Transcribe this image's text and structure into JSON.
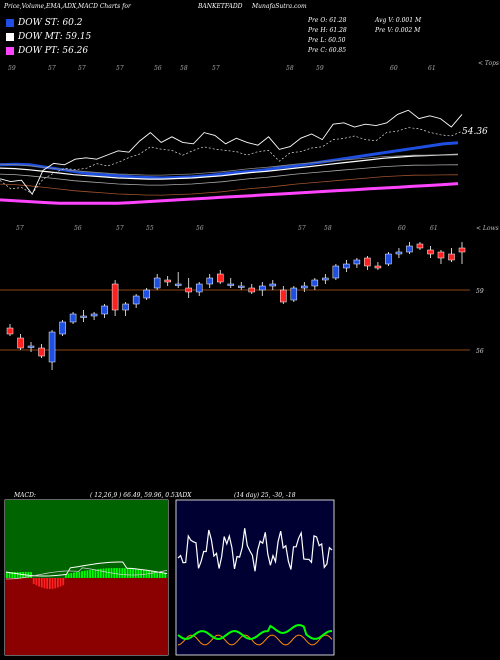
{
  "header": {
    "left_title": "Price,Volume,EMA,ADX,MACD Charts for",
    "symbol": "BANKETFADD",
    "site": "MunafaSutra.com"
  },
  "legend": [
    {
      "label": "DOW ST: 60.2",
      "color": "#1f4fe0"
    },
    {
      "label": "DOW MT: 59.15",
      "color": "#ffffff"
    },
    {
      "label": "DOW PT: 56.26",
      "color": "#ff44ff"
    }
  ],
  "quote": {
    "prev_open": "Pre O: 61.28",
    "prev_high": "Pre H: 61.28",
    "prev_low": "Pre L: 60.50",
    "prev_close": "Pre C: 60.85",
    "avg_volume": "Avg V: 0.001 M",
    "prev_volume": "Pre V: 0.002 M"
  },
  "upper_chart": {
    "tops_label": "< Tops",
    "lows_label": "< Lows",
    "price_label": "54.36",
    "top_tick_labels": [
      "59",
      "57",
      "57",
      "57",
      "56",
      "58",
      "57",
      "58",
      "59",
      "60",
      "61"
    ],
    "low_tick_labels": [
      "57",
      "56",
      "57",
      "55",
      "56",
      "57",
      "58",
      "60",
      "61"
    ]
  },
  "chart_data": {
    "type": "candlestick",
    "price_levels": [
      {
        "label": "59",
        "value": 59
      },
      {
        "label": "56",
        "value": 56
      }
    ],
    "candles": [
      {
        "o": 57.1,
        "h": 57.3,
        "l": 56.7,
        "c": 56.8
      },
      {
        "o": 56.6,
        "h": 56.8,
        "l": 56.0,
        "c": 56.1
      },
      {
        "o": 56.2,
        "h": 56.4,
        "l": 55.9,
        "c": 56.2
      },
      {
        "o": 56.1,
        "h": 56.3,
        "l": 55.6,
        "c": 55.7
      },
      {
        "o": 55.4,
        "h": 57.0,
        "l": 55.0,
        "c": 56.9
      },
      {
        "o": 56.8,
        "h": 57.5,
        "l": 56.7,
        "c": 57.4
      },
      {
        "o": 57.4,
        "h": 57.9,
        "l": 57.3,
        "c": 57.8
      },
      {
        "o": 57.7,
        "h": 58.0,
        "l": 57.4,
        "c": 57.7
      },
      {
        "o": 57.7,
        "h": 57.9,
        "l": 57.5,
        "c": 57.8
      },
      {
        "o": 57.8,
        "h": 58.3,
        "l": 57.6,
        "c": 58.2
      },
      {
        "o": 59.3,
        "h": 59.5,
        "l": 57.7,
        "c": 58.0
      },
      {
        "o": 58.0,
        "h": 58.4,
        "l": 57.7,
        "c": 58.3
      },
      {
        "o": 58.3,
        "h": 58.8,
        "l": 58.1,
        "c": 58.7
      },
      {
        "o": 58.6,
        "h": 59.1,
        "l": 58.5,
        "c": 59.0
      },
      {
        "o": 59.1,
        "h": 59.8,
        "l": 59.0,
        "c": 59.6
      },
      {
        "o": 59.5,
        "h": 59.7,
        "l": 59.2,
        "c": 59.4
      },
      {
        "o": 59.3,
        "h": 59.9,
        "l": 59.1,
        "c": 59.3
      },
      {
        "o": 59.1,
        "h": 59.6,
        "l": 58.6,
        "c": 58.9
      },
      {
        "o": 58.9,
        "h": 59.4,
        "l": 58.7,
        "c": 59.3
      },
      {
        "o": 59.3,
        "h": 59.8,
        "l": 59.1,
        "c": 59.6
      },
      {
        "o": 59.8,
        "h": 60.0,
        "l": 59.3,
        "c": 59.4
      },
      {
        "o": 59.3,
        "h": 59.6,
        "l": 59.1,
        "c": 59.3
      },
      {
        "o": 59.2,
        "h": 59.4,
        "l": 59.0,
        "c": 59.2
      },
      {
        "o": 59.1,
        "h": 59.3,
        "l": 58.8,
        "c": 58.9
      },
      {
        "o": 59.0,
        "h": 59.4,
        "l": 58.7,
        "c": 59.2
      },
      {
        "o": 59.2,
        "h": 59.5,
        "l": 59.0,
        "c": 59.3
      },
      {
        "o": 59.0,
        "h": 59.2,
        "l": 58.3,
        "c": 58.4
      },
      {
        "o": 58.5,
        "h": 59.2,
        "l": 58.4,
        "c": 59.1
      },
      {
        "o": 59.1,
        "h": 59.4,
        "l": 58.9,
        "c": 59.2
      },
      {
        "o": 59.2,
        "h": 59.6,
        "l": 59.0,
        "c": 59.5
      },
      {
        "o": 59.5,
        "h": 59.8,
        "l": 59.3,
        "c": 59.6
      },
      {
        "o": 59.6,
        "h": 60.3,
        "l": 59.5,
        "c": 60.2
      },
      {
        "o": 60.1,
        "h": 60.5,
        "l": 59.9,
        "c": 60.3
      },
      {
        "o": 60.3,
        "h": 60.6,
        "l": 60.1,
        "c": 60.5
      },
      {
        "o": 60.6,
        "h": 60.7,
        "l": 60.0,
        "c": 60.2
      },
      {
        "o": 60.2,
        "h": 60.4,
        "l": 60.0,
        "c": 60.1
      },
      {
        "o": 60.3,
        "h": 60.9,
        "l": 60.2,
        "c": 60.8
      },
      {
        "o": 60.8,
        "h": 61.1,
        "l": 60.6,
        "c": 60.9
      },
      {
        "o": 60.9,
        "h": 61.4,
        "l": 60.8,
        "c": 61.2
      },
      {
        "o": 61.3,
        "h": 61.4,
        "l": 61.0,
        "c": 61.1
      },
      {
        "o": 61.0,
        "h": 61.2,
        "l": 60.6,
        "c": 60.8
      },
      {
        "o": 60.9,
        "h": 61.0,
        "l": 60.3,
        "c": 60.6
      },
      {
        "o": 60.8,
        "h": 61.1,
        "l": 60.4,
        "c": 60.5
      },
      {
        "o": 61.1,
        "h": 61.4,
        "l": 60.3,
        "c": 60.9
      }
    ],
    "ema_series": [
      {
        "name": "DOW ST",
        "color": "#1f4fe0",
        "values": [
          58.2,
          58.25,
          58.2,
          58.0,
          57.8,
          57.6,
          57.4,
          57.3,
          57.2,
          57.1,
          57.05,
          57.0,
          57.05,
          57.1,
          57.2,
          57.35,
          57.5,
          57.6,
          57.75,
          57.95,
          58.1,
          58.3,
          58.5,
          58.7,
          58.9,
          59.1,
          59.3,
          59.5,
          59.7,
          59.9,
          60.1,
          60.2
        ]
      },
      {
        "name": "DOW MT",
        "color": "#ffffff",
        "values": [
          57.9,
          57.85,
          57.75,
          57.6,
          57.45,
          57.3,
          57.2,
          57.1,
          57.0,
          56.95,
          56.9,
          56.9,
          56.95,
          57.0,
          57.1,
          57.2,
          57.35,
          57.5,
          57.6,
          57.75,
          57.9,
          58.05,
          58.2,
          58.35,
          58.5,
          58.65,
          58.8,
          58.9,
          59.0,
          59.05,
          59.1,
          59.15
        ]
      },
      {
        "name": "DOW PT",
        "color": "#ff44ff",
        "values": [
          55.3,
          55.25,
          55.2,
          55.15,
          55.1,
          55.1,
          55.1,
          55.1,
          55.1,
          55.15,
          55.2,
          55.25,
          55.3,
          55.35,
          55.4,
          55.45,
          55.5,
          55.55,
          55.6,
          55.65,
          55.7,
          55.75,
          55.8,
          55.85,
          55.9,
          55.95,
          56.0,
          56.05,
          56.1,
          56.15,
          56.2,
          56.26
        ]
      }
    ]
  },
  "macd_panel": {
    "label": "MACD:",
    "params": "( 12,26,9 ) 66.49, 59.96, 0.53"
  },
  "adx_panel": {
    "label": "ADX",
    "params": "(14  day) 25,  -30,  -18"
  }
}
